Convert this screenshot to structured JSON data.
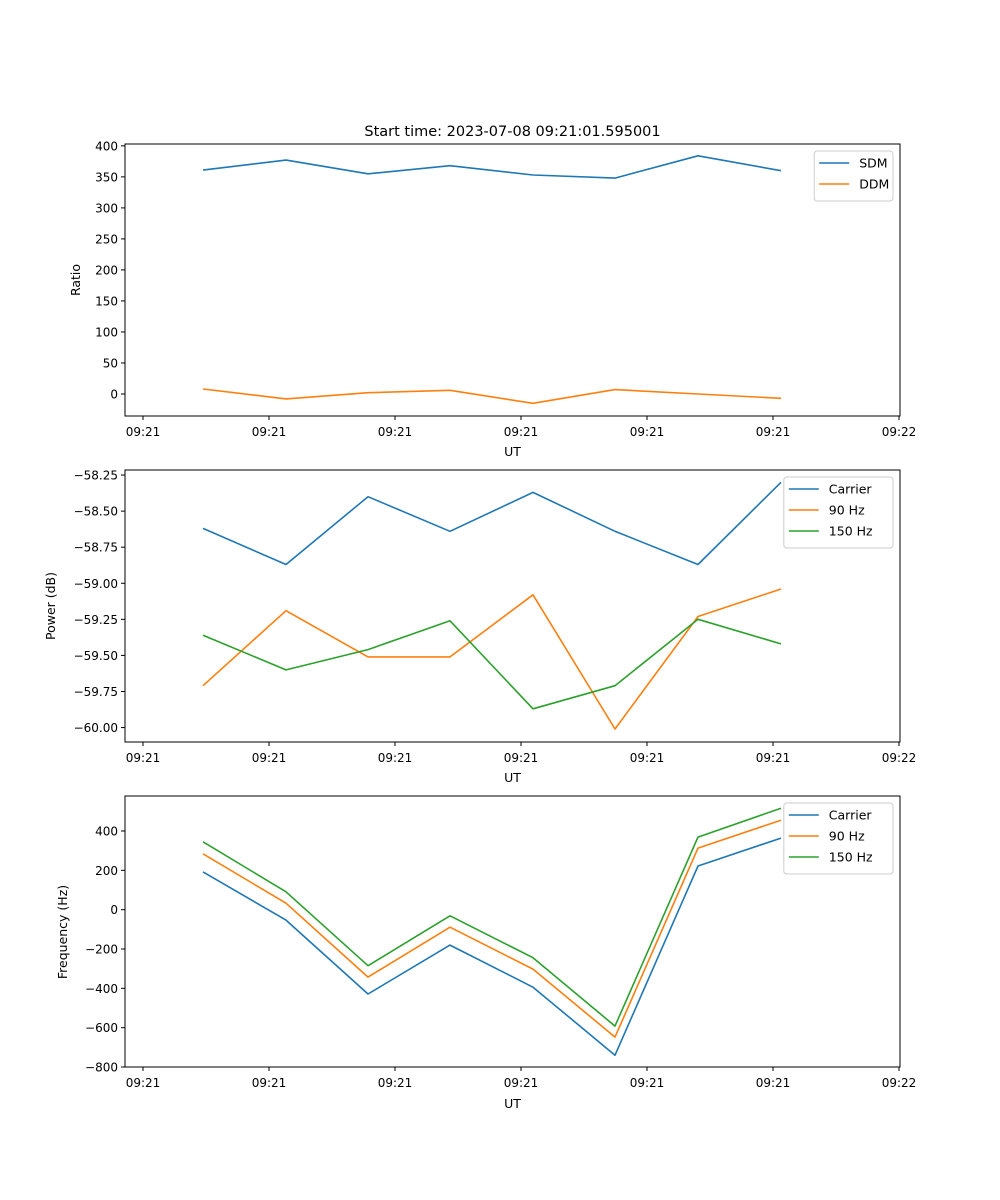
{
  "chart_data": [
    {
      "type": "line",
      "title": "Start time: 2023-07-08 09:21:01.595001",
      "xlabel": "UT",
      "ylabel": "Ratio",
      "x_ticks": [
        "09:21",
        "09:21",
        "09:21",
        "09:21",
        "09:21",
        "09:21",
        "09:22"
      ],
      "y_ticks": [
        400,
        350,
        300,
        250,
        200,
        150,
        100,
        50,
        0
      ],
      "ylim": [
        -35.5,
        403
      ],
      "legend_position": "top-right",
      "series": [
        {
          "name": "SDM",
          "color": "#1f77b4",
          "values": [
            361,
            377,
            355,
            368,
            353,
            348,
            384,
            360
          ]
        },
        {
          "name": "DDM",
          "color": "#ff7f0e",
          "values": [
            8,
            -8,
            2,
            6,
            -15,
            7,
            0,
            -7
          ]
        }
      ]
    },
    {
      "type": "line",
      "title": "",
      "xlabel": "UT",
      "ylabel": "Power (dB)",
      "x_ticks": [
        "09:21",
        "09:21",
        "09:21",
        "09:21",
        "09:21",
        "09:21",
        "09:22"
      ],
      "y_ticks": [
        "−58.25",
        "−58.50",
        "−58.75",
        "−59.00",
        "−59.25",
        "−59.50",
        "−59.75",
        "−60.00"
      ],
      "y_tick_values": [
        -58.25,
        -58.5,
        -58.75,
        -59.0,
        -59.25,
        -59.5,
        -59.75,
        -60.0
      ],
      "ylim": [
        -60.1,
        -58.215
      ],
      "legend_position": "top-right",
      "series": [
        {
          "name": "Carrier",
          "color": "#1f77b4",
          "values": [
            -58.62,
            -58.87,
            -58.4,
            -58.64,
            -58.37,
            -58.64,
            -58.87,
            -58.3
          ]
        },
        {
          "name": "90 Hz",
          "color": "#ff7f0e",
          "values": [
            -59.71,
            -59.19,
            -59.51,
            -59.51,
            -59.08,
            -60.01,
            -59.23,
            -59.04
          ]
        },
        {
          "name": "150 Hz",
          "color": "#2ca02c",
          "values": [
            -59.36,
            -59.6,
            -59.46,
            -59.26,
            -59.87,
            -59.71,
            -59.25,
            -59.42
          ]
        }
      ]
    },
    {
      "type": "line",
      "title": "",
      "xlabel": "UT",
      "ylabel": "Frequency (Hz)",
      "x_ticks": [
        "09:21",
        "09:21",
        "09:21",
        "09:21",
        "09:21",
        "09:21",
        "09:22"
      ],
      "y_ticks": [
        "400",
        "200",
        "0",
        "−200",
        "−400",
        "−600",
        "−800"
      ],
      "y_tick_values": [
        400,
        200,
        0,
        -200,
        -400,
        -600,
        -800
      ],
      "ylim": [
        -800,
        578
      ],
      "legend_position": "top-right",
      "series": [
        {
          "name": "Carrier",
          "color": "#1f77b4",
          "values": [
            192,
            -53,
            -429,
            -180,
            -394,
            -740,
            222,
            364
          ]
        },
        {
          "name": "90 Hz",
          "color": "#ff7f0e",
          "values": [
            284,
            33,
            -343,
            -89,
            -302,
            -648,
            313,
            455
          ]
        },
        {
          "name": "150 Hz",
          "color": "#2ca02c",
          "values": [
            345,
            91,
            -285,
            -31,
            -244,
            -592,
            369,
            516
          ]
        }
      ]
    }
  ]
}
